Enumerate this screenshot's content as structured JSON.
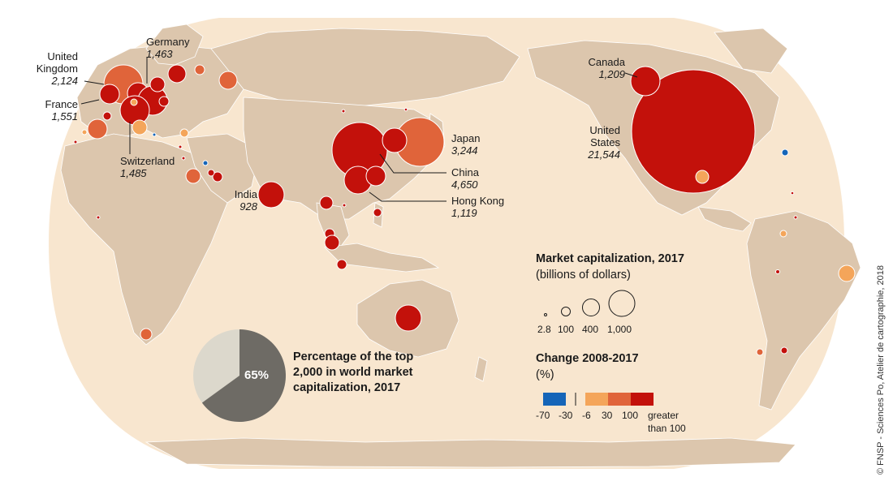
{
  "title": "",
  "colors": {
    "ocean_bg": "#ffffff",
    "sea": "#f8e6cf",
    "land": "#dcc6ad",
    "border": "#ffffff",
    "change_neg_70_neg_30": "#1565b8",
    "change_neg_6_30": "#f4a55a",
    "change_30_100": "#e0643a",
    "change_gt_100": "#c3110b",
    "pie_share": "#6e6b65",
    "pie_rest": "#dcd8cc"
  },
  "map_labels": {
    "uk": {
      "name": "United Kingdom",
      "value": "2,124"
    },
    "germany": {
      "name": "Germany",
      "value": "1,463"
    },
    "france": {
      "name": "France",
      "value": "1,551"
    },
    "switzerland": {
      "name": "Switzerland",
      "value": "1,485"
    },
    "india": {
      "name": "India",
      "value": "928"
    },
    "japan": {
      "name": "Japan",
      "value": "3,244"
    },
    "china": {
      "name": "China",
      "value": "4,650"
    },
    "hongkong": {
      "name": "Hong Kong",
      "value": "1,119"
    },
    "canada": {
      "name": "Canada",
      "value": "1,209"
    },
    "usa": {
      "name": "United States",
      "value": "21,544"
    }
  },
  "chart_data": {
    "type": "map",
    "title": "Market capitalization, 2017",
    "subtitle": "(billions of dollars)",
    "size_legend": {
      "title": "Market capitalization, 2017",
      "unit": "(billions of dollars)",
      "values": [
        2.8,
        100,
        400,
        1000
      ],
      "labels": [
        "2.8",
        "100",
        "400",
        "1,000"
      ]
    },
    "color_legend": {
      "title": "Change 2008-2017",
      "unit": "(%)",
      "classes": [
        {
          "range": "-70 to -30",
          "color": "#1565b8"
        },
        {
          "range": "-6 to 30",
          "color": "#f4a55a"
        },
        {
          "range": "30 to 100",
          "color": "#e0643a"
        },
        {
          "range": "greater than 100",
          "color": "#c3110b"
        }
      ],
      "breaks": [
        "-70",
        "-30",
        "-6",
        "30",
        "100"
      ],
      "last_label_line1": "greater",
      "last_label_line2": "than 100"
    },
    "pie": {
      "title_lines": [
        "Percentage of the top",
        "2,000 in world market",
        "capitalization, 2017"
      ],
      "value": 65,
      "label": "65%"
    },
    "bubbles": [
      {
        "country": "United States",
        "value": 21544,
        "change_class": "greater than 100"
      },
      {
        "country": "China",
        "value": 4650,
        "change_class": "greater than 100"
      },
      {
        "country": "Japan",
        "value": 3244,
        "change_class": "30 to 100"
      },
      {
        "country": "United Kingdom",
        "value": 2124,
        "change_class": "30 to 100"
      },
      {
        "country": "France",
        "value": 1551,
        "change_class": "greater than 100"
      },
      {
        "country": "Switzerland",
        "value": 1485,
        "change_class": "greater than 100"
      },
      {
        "country": "Germany",
        "value": 1463,
        "change_class": "greater than 100"
      },
      {
        "country": "Canada",
        "value": 1209,
        "change_class": "greater than 100"
      },
      {
        "country": "Hong Kong",
        "value": 1119,
        "change_class": "greater than 100"
      },
      {
        "country": "India",
        "value": 928,
        "change_class": "greater than 100"
      }
    ]
  },
  "credit": "© FNSP - Sciences Po, Atelier de cartographie, 2018"
}
